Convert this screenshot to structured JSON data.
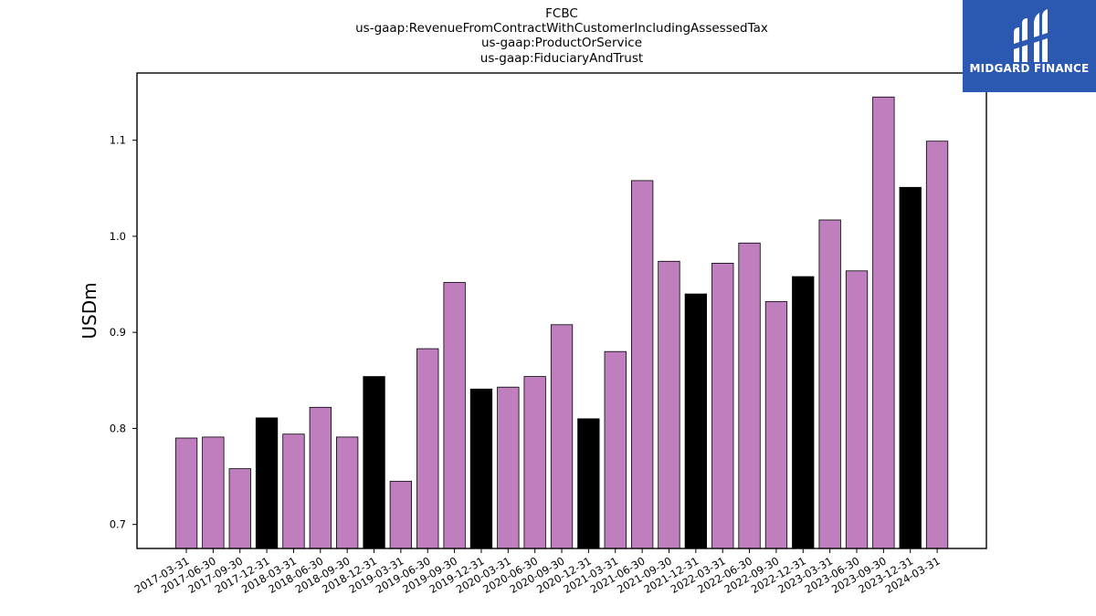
{
  "title_lines": [
    "FCBC",
    "us-gaap:RevenueFromContractWithCustomerIncludingAssessedTax",
    "us-gaap:ProductOrService",
    "us-gaap:FiduciaryAndTrust"
  ],
  "logo": {
    "text": "MIDGARD FINANCE",
    "background": "#2b58b0"
  },
  "colors": {
    "regular": "#bf7fbf",
    "year_end": "#000000",
    "edge": "#000000"
  },
  "chart_data": {
    "type": "bar",
    "ylabel": "USDm",
    "xlabel": "",
    "ylim": [
      0.675,
      1.17
    ],
    "yticks": [
      "0.7",
      "0.8",
      "0.9",
      "1.0",
      "1.1"
    ],
    "grid": false,
    "categories": [
      "2017-03-31",
      "2017-06-30",
      "2017-09-30",
      "2017-12-31",
      "2018-03-31",
      "2018-06-30",
      "2018-09-30",
      "2018-12-31",
      "2019-03-31",
      "2019-06-30",
      "2019-09-30",
      "2019-12-31",
      "2020-03-31",
      "2020-06-30",
      "2020-09-30",
      "2020-12-31",
      "2021-03-31",
      "2021-06-30",
      "2021-09-30",
      "2021-12-31",
      "2022-03-31",
      "2022-06-30",
      "2022-09-30",
      "2022-12-31",
      "2023-03-31",
      "2023-06-30",
      "2023-09-30",
      "2023-12-31",
      "2024-03-31"
    ],
    "values": [
      0.79,
      0.791,
      0.758,
      0.811,
      0.794,
      0.822,
      0.791,
      0.854,
      0.745,
      0.883,
      0.952,
      0.841,
      0.843,
      0.854,
      0.908,
      0.81,
      0.88,
      1.058,
      0.974,
      0.94,
      0.972,
      0.993,
      0.932,
      0.958,
      1.017,
      0.964,
      1.145,
      1.051,
      1.099
    ]
  }
}
